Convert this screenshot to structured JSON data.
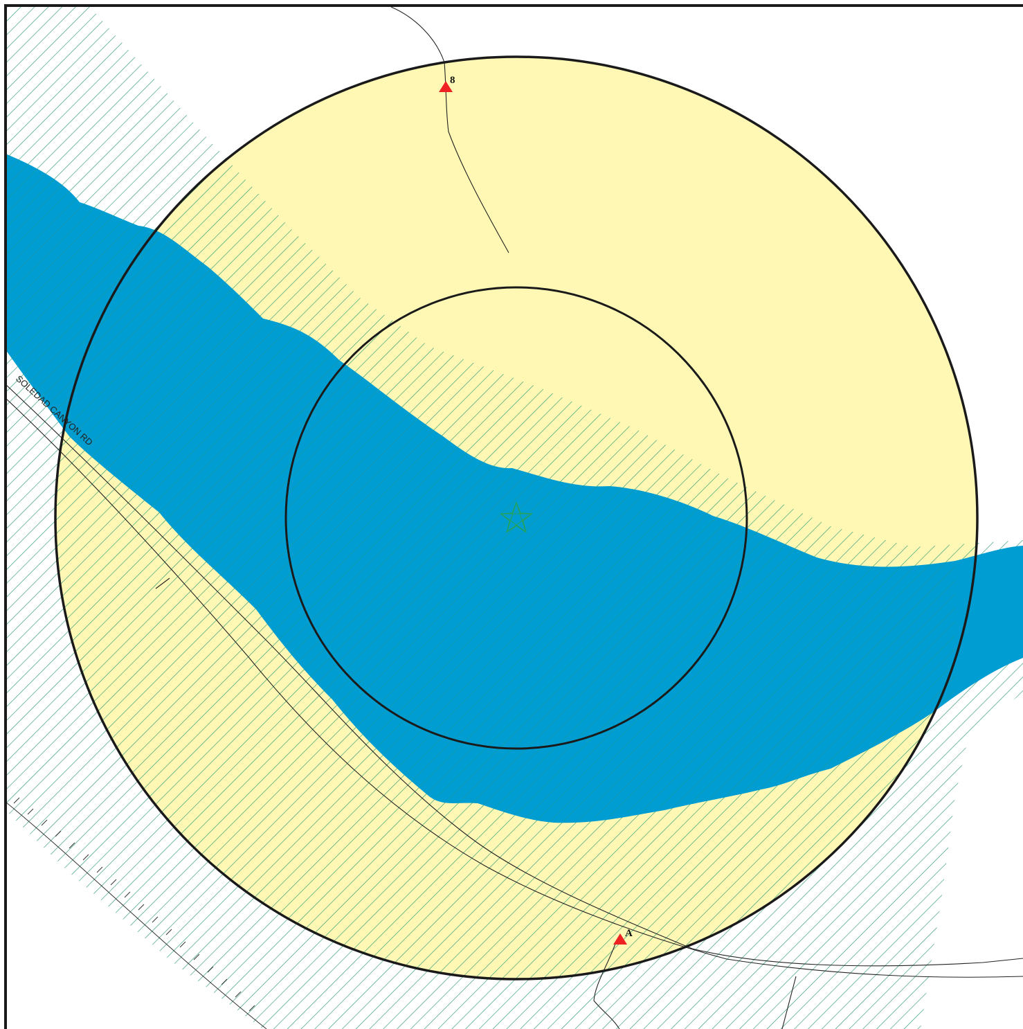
{
  "map": {
    "road_label": "SOLEDAD CANYON RD",
    "markers": [
      {
        "id": "8",
        "label": "8",
        "symbol": "triangle-marker"
      },
      {
        "id": "A",
        "label": "A",
        "symbol": "triangle-marker"
      }
    ],
    "center_symbol": "star-icon",
    "colors": {
      "buffer_fill": "#fef8b4",
      "water": "#009dd2",
      "hatch": "#2e9a74",
      "marker": "#ee2222",
      "boundary": "#1a1a1a",
      "star": "#22a060"
    }
  }
}
